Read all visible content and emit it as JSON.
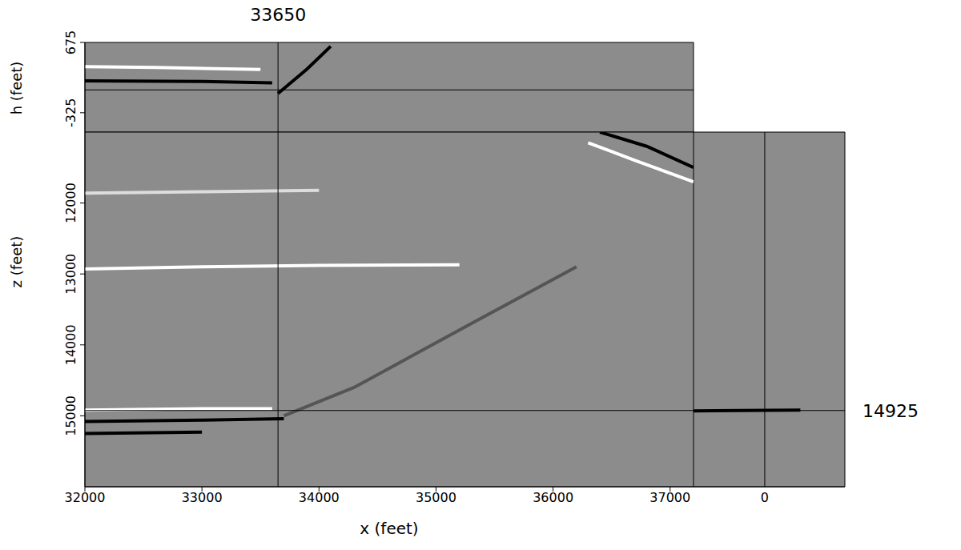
{
  "chart_data": [
    {
      "type": "line",
      "x_label": "x (feet)",
      "y_label": "z (feet)",
      "xlim": [
        32000,
        37200
      ],
      "xticks": [
        32000,
        33000,
        34000,
        35000,
        36000,
        37000
      ],
      "ylim": [
        11000,
        16000
      ],
      "yticks": [
        12000,
        13000,
        14000,
        15000
      ],
      "crosshair": {
        "x": 33650,
        "y": 14925
      },
      "series": [
        {
          "color": "#ffffff",
          "x": [
            32000,
            33000,
            34000,
            35200
          ],
          "values": [
            12930,
            12900,
            12880,
            12870
          ]
        },
        {
          "color": "#000000",
          "x": [
            32000,
            33000,
            33700
          ],
          "values": [
            15080,
            15060,
            15040
          ]
        },
        {
          "color": "#ffffff",
          "x": [
            32000,
            33000,
            33600
          ],
          "values": [
            14920,
            14900,
            14900
          ]
        },
        {
          "color": "#000000",
          "x": [
            32000,
            33000
          ],
          "values": [
            15250,
            15230
          ]
        },
        {
          "color": "#dddddd",
          "x": [
            32000,
            33000,
            34000
          ],
          "values": [
            11860,
            11840,
            11820
          ]
        },
        {
          "color": "#555555",
          "x": [
            33700,
            34300,
            35300,
            36200
          ],
          "values": [
            15000,
            14600,
            13700,
            12900
          ]
        },
        {
          "color": "#000000",
          "x": [
            36400,
            36800,
            37200
          ],
          "values": [
            11000,
            11200,
            11500
          ]
        },
        {
          "color": "#ffffff",
          "x": [
            36300,
            36700,
            37200
          ],
          "values": [
            11150,
            11400,
            11700
          ]
        }
      ]
    },
    {
      "type": "line",
      "y_label": "h (feet)",
      "xlim": [
        32000,
        37200
      ],
      "ylim": [
        -600,
        675
      ],
      "yticks": [
        675,
        -325
      ],
      "tick_labels": "y",
      "crosshair": {
        "x": 33650,
        "y": 0
      },
      "series": [
        {
          "color": "#ffffff",
          "x": [
            32000,
            32600,
            33200,
            33500
          ],
          "values": [
            330,
            320,
            300,
            290
          ]
        },
        {
          "color": "#000000",
          "x": [
            32000,
            33000,
            33600
          ],
          "values": [
            130,
            120,
            100
          ]
        },
        {
          "color": "#000000",
          "x": [
            33650,
            33900,
            34100
          ],
          "values": [
            -50,
            300,
            620
          ]
        }
      ]
    },
    {
      "type": "line",
      "xlim": [
        -600,
        675
      ],
      "xticks": [
        0
      ],
      "ylim": [
        11000,
        16000
      ],
      "tick_labels": "x",
      "crosshair": {
        "x": 0,
        "y": 14925
      },
      "series": [
        {
          "color": "#000000",
          "x": [
            -600,
            -200,
            300
          ],
          "values": [
            14930,
            14925,
            14920
          ]
        }
      ]
    }
  ]
}
